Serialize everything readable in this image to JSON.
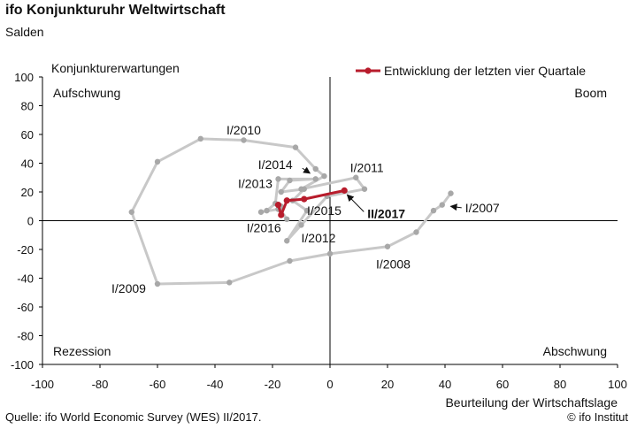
{
  "header": {
    "title": "ifo Konjunkturuhr Weltwirtschaft",
    "subtitle": "Salden"
  },
  "footer": {
    "source": "Quelle: ifo World Economic Survey (WES) II/2017.",
    "copyright": "© ifo Institut"
  },
  "chart_data": {
    "type": "line",
    "xlabel": "Beurteilung der Wirtschaftslage",
    "ylabel": "Konjunkturerwartungen",
    "xlim": [
      -100,
      100
    ],
    "ylim": [
      -100,
      100
    ],
    "xticks": [
      -100,
      -80,
      -60,
      -40,
      -20,
      0,
      20,
      40,
      60,
      80,
      100
    ],
    "yticks": [
      -100,
      -80,
      -60,
      -40,
      -20,
      0,
      20,
      40,
      60,
      80,
      100
    ],
    "grid": false,
    "legend": {
      "position": "top-right",
      "entries": [
        "Entwicklung der letzten vier Quartale"
      ]
    },
    "quadrant_labels": {
      "top_left": "Aufschwung",
      "top_right": "Boom",
      "bottom_left": "Rezession",
      "bottom_right": "Abschwung"
    },
    "colors": {
      "history": "#c8c8c8",
      "recent": "#b81c2c",
      "axis": "#000000"
    },
    "series": [
      {
        "points": [
          {
            "x": 42,
            "y": 19
          },
          {
            "x": 39,
            "y": 11
          },
          {
            "x": 36,
            "y": 7
          },
          {
            "x": 30,
            "y": -8
          },
          {
            "x": 20,
            "y": -18
          },
          {
            "x": 0,
            "y": -23
          },
          {
            "x": -14,
            "y": -28
          },
          {
            "x": -35,
            "y": -43
          },
          {
            "x": -60,
            "y": -44
          },
          {
            "x": -69,
            "y": 6
          },
          {
            "x": -60,
            "y": 41
          },
          {
            "x": -45,
            "y": 57
          },
          {
            "x": -30,
            "y": 56
          },
          {
            "x": -12,
            "y": 51
          },
          {
            "x": -5,
            "y": 36
          },
          {
            "x": -2,
            "y": 31
          },
          {
            "x": -10,
            "y": 22
          },
          {
            "x": 9,
            "y": 30
          },
          {
            "x": 12,
            "y": 22
          },
          {
            "x": -1,
            "y": 17
          },
          {
            "x": -10,
            "y": -3
          },
          {
            "x": -15,
            "y": -14
          },
          {
            "x": -8,
            "y": 7
          },
          {
            "x": -13,
            "y": 14
          },
          {
            "x": -9,
            "y": 22
          },
          {
            "x": -17,
            "y": 20
          },
          {
            "x": -14,
            "y": 28
          },
          {
            "x": -5,
            "y": 29
          },
          {
            "x": -18,
            "y": 29
          },
          {
            "x": -19,
            "y": 12
          },
          {
            "x": -22,
            "y": 7
          },
          {
            "x": -24,
            "y": 6
          },
          {
            "x": -18,
            "y": 8
          },
          {
            "x": -15,
            "y": 1
          },
          {
            "x": -17,
            "y": 7
          },
          {
            "x": -17,
            "y": 10
          }
        ]
      },
      {
        "name": "Entwicklung der letzten vier Quartale",
        "points": [
          {
            "x": -18,
            "y": 11
          },
          {
            "x": -17,
            "y": 4
          },
          {
            "x": -15,
            "y": 14
          },
          {
            "x": -9,
            "y": 15
          },
          {
            "x": 5,
            "y": 21
          }
        ]
      }
    ],
    "annotations": [
      {
        "text": "I/2007",
        "x": 47,
        "y": 9,
        "bold": false,
        "arrow_to": {
          "x": 42,
          "y": 10
        }
      },
      {
        "text": "I/2008",
        "x": 16,
        "y": -30,
        "bold": false
      },
      {
        "text": "I/2009",
        "x": -76,
        "y": -47,
        "bold": false
      },
      {
        "text": "I/2010",
        "x": -36,
        "y": 63,
        "bold": false
      },
      {
        "text": "I/2011",
        "x": 7,
        "y": 37,
        "bold": false
      },
      {
        "text": "I/2012",
        "x": -10,
        "y": -12,
        "bold": false
      },
      {
        "text": "I/2013",
        "x": -32,
        "y": 26,
        "bold": false
      },
      {
        "text": "I/2014",
        "x": -25,
        "y": 39,
        "bold": false,
        "arrow_to": {
          "x": -7,
          "y": 33
        }
      },
      {
        "text": "I/2015",
        "x": -8,
        "y": 7,
        "bold": false
      },
      {
        "text": "I/2016",
        "x": -29,
        "y": -5,
        "bold": false
      },
      {
        "text": "II/2017",
        "x": 13,
        "y": 5,
        "bold": true,
        "arrow_to": {
          "x": 6,
          "y": 18
        }
      }
    ]
  }
}
